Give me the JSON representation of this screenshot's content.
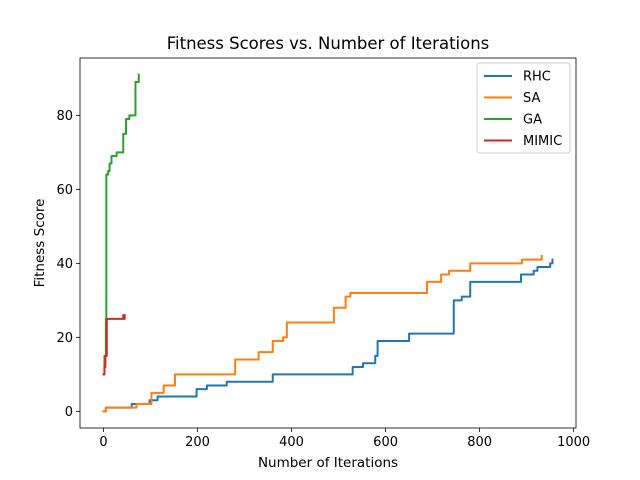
{
  "chart_data": {
    "type": "line",
    "title": "Fitness Scores vs. Number of Iterations",
    "xlabel": "Number of Iterations",
    "ylabel": "Fitness Score",
    "xlim": [
      -50,
      1005
    ],
    "ylim": [
      -4.5,
      95.5
    ],
    "xticks": [
      0,
      200,
      400,
      600,
      800,
      1000
    ],
    "yticks": [
      0,
      20,
      40,
      60,
      80
    ],
    "grid": false,
    "legend_position": "top-right",
    "series": [
      {
        "name": "RHC",
        "color": "#1f77b4",
        "steps": [
          [
            0,
            0
          ],
          [
            5,
            1
          ],
          [
            60,
            2
          ],
          [
            98,
            3
          ],
          [
            115,
            4
          ],
          [
            198,
            6
          ],
          [
            220,
            7
          ],
          [
            262,
            8
          ],
          [
            360,
            10
          ],
          [
            530,
            12
          ],
          [
            552,
            13
          ],
          [
            578,
            15
          ],
          [
            583,
            19
          ],
          [
            650,
            21
          ],
          [
            745,
            30
          ],
          [
            762,
            31
          ],
          [
            780,
            35
          ],
          [
            888,
            37
          ],
          [
            915,
            38
          ],
          [
            923,
            39
          ],
          [
            950,
            40
          ],
          [
            955,
            41
          ]
        ]
      },
      {
        "name": "SA",
        "color": "#ff7f0e",
        "steps": [
          [
            0,
            0
          ],
          [
            5,
            1
          ],
          [
            70,
            2
          ],
          [
            102,
            5
          ],
          [
            128,
            7
          ],
          [
            152,
            10
          ],
          [
            280,
            14
          ],
          [
            330,
            16
          ],
          [
            360,
            19
          ],
          [
            382,
            20
          ],
          [
            390,
            24
          ],
          [
            490,
            28
          ],
          [
            515,
            31
          ],
          [
            525,
            32
          ],
          [
            688,
            35
          ],
          [
            718,
            37
          ],
          [
            735,
            38
          ],
          [
            780,
            40
          ],
          [
            890,
            41
          ],
          [
            932,
            42
          ]
        ]
      },
      {
        "name": "GA",
        "color": "#2ca02c",
        "steps": [
          [
            0,
            10
          ],
          [
            2,
            15
          ],
          [
            5,
            25
          ],
          [
            6,
            64
          ],
          [
            10,
            65
          ],
          [
            13,
            67
          ],
          [
            17,
            69
          ],
          [
            28,
            70
          ],
          [
            42,
            75
          ],
          [
            48,
            79
          ],
          [
            55,
            80
          ],
          [
            68,
            89
          ],
          [
            75,
            91
          ]
        ]
      },
      {
        "name": "MIMIC",
        "color": "#d62728",
        "steps": [
          [
            0,
            10
          ],
          [
            2,
            12
          ],
          [
            4,
            15
          ],
          [
            7,
            25
          ],
          [
            42,
            26
          ],
          [
            43,
            25
          ],
          [
            45,
            26
          ]
        ]
      }
    ]
  }
}
